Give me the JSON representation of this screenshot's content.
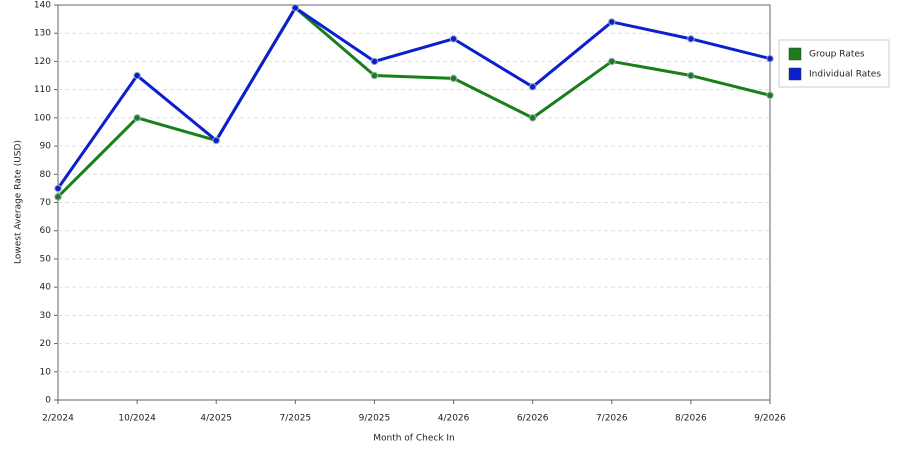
{
  "chart_data": {
    "type": "line",
    "x_label": "Month of Check In",
    "y_label": "Lowest Average Rate (USD)",
    "categories": [
      "2/2024",
      "10/2024",
      "4/2025",
      "7/2025",
      "9/2025",
      "4/2026",
      "6/2026",
      "7/2026",
      "8/2026",
      "9/2026"
    ],
    "series": [
      {
        "name": "Group Rates",
        "color": "#1a7f1a",
        "values": [
          72,
          100,
          92,
          139,
          115,
          114,
          100,
          120,
          115,
          108
        ]
      },
      {
        "name": "Individual Rates",
        "color": "#0b1fd0",
        "values": [
          75,
          115,
          92,
          139,
          120,
          128,
          111,
          134,
          128,
          121
        ]
      }
    ],
    "ylim": [
      0,
      140
    ],
    "yticks": [
      0,
      10,
      20,
      30,
      40,
      50,
      60,
      70,
      80,
      90,
      100,
      110,
      120,
      130,
      140
    ],
    "grid": true,
    "legend": "right"
  }
}
